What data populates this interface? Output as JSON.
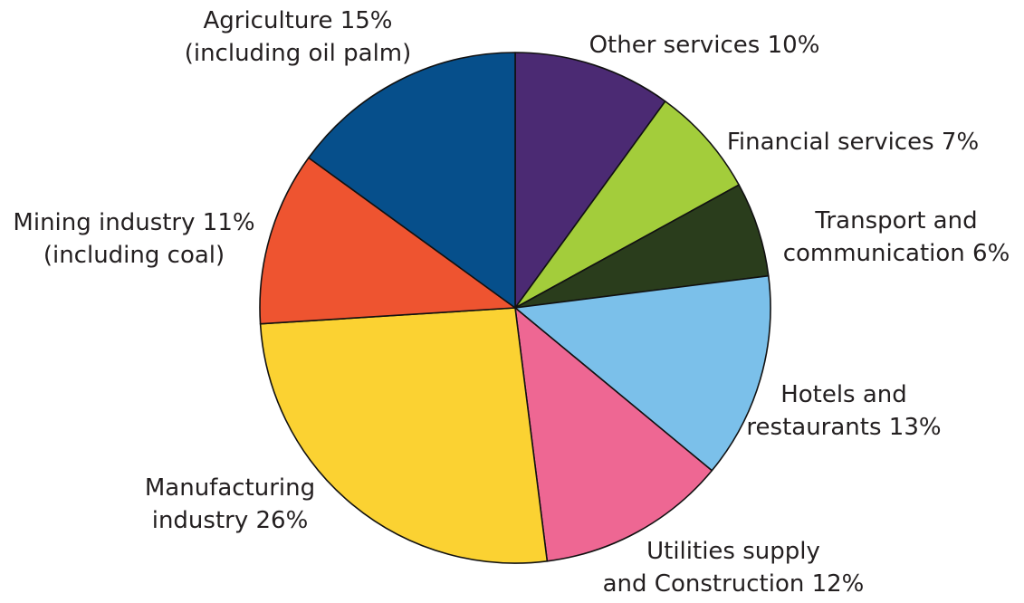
{
  "chart_data": {
    "type": "pie",
    "title": "",
    "start_direction": "top, clockwise",
    "slices": [
      {
        "label_lines": [
          "Other services 10%"
        ],
        "value": 10,
        "color": "#4b2a73"
      },
      {
        "label_lines": [
          "Financial services 7%"
        ],
        "value": 7,
        "color": "#a3cd3b"
      },
      {
        "label_lines": [
          "Transport and",
          "communication 6%"
        ],
        "value": 6,
        "color": "#2a3d1c"
      },
      {
        "label_lines": [
          "Hotels and",
          "restaurants 13%"
        ],
        "value": 13,
        "color": "#7bc0ea"
      },
      {
        "label_lines": [
          "Utilities supply",
          "and Construction 12%"
        ],
        "value": 12,
        "color": "#ee6793"
      },
      {
        "label_lines": [
          "Manufacturing",
          "industry 26%"
        ],
        "value": 26,
        "color": "#fbd232"
      },
      {
        "label_lines": [
          "Mining industry 11%",
          "(including coal)"
        ],
        "value": 11,
        "color": "#ee5430"
      },
      {
        "label_lines": [
          "Agriculture 15%",
          "(including oil palm)"
        ],
        "value": 15,
        "color": "#064f8b"
      }
    ]
  }
}
